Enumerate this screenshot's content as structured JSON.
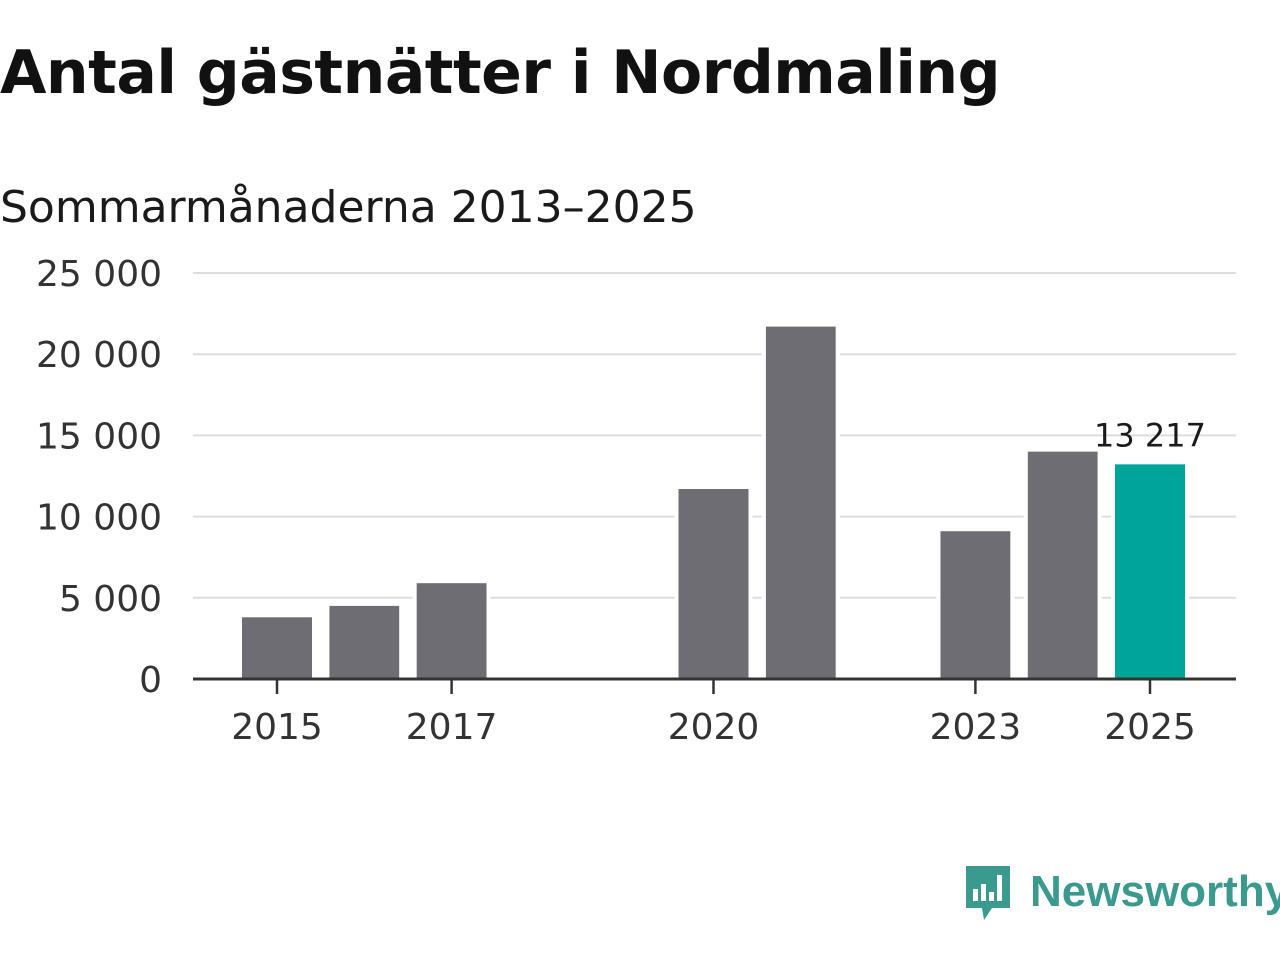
{
  "title": "Antal gästnätter i Nordmaling",
  "subtitle": "Sommarmånaderna 2013–2025",
  "brand": {
    "name": "Newsworthy",
    "icon": "bar-chart-speech-bubble-icon",
    "color": "#3a9a8e"
  },
  "colors": {
    "bar": "#6e6d73",
    "highlight": "#00a499",
    "grid": "#dddddd",
    "axis": "#333333"
  },
  "chart_data": {
    "type": "bar",
    "categories": [
      "2013",
      "2014",
      "2015",
      "2016",
      "2017",
      "2018",
      "2019",
      "2020",
      "2021",
      "2022",
      "2023",
      "2024",
      "2025"
    ],
    "values": [
      null,
      null,
      3800,
      4500,
      5900,
      null,
      null,
      11700,
      21700,
      null,
      9100,
      14000,
      13217
    ],
    "highlight_index": 12,
    "data_labels": [
      {
        "index": 12,
        "text": "13 217"
      }
    ],
    "x_tick_labels": [
      "2015",
      "2017",
      "2020",
      "2023",
      "2025"
    ],
    "y_tick_labels": [
      "0",
      "5 000",
      "10 000",
      "15 000",
      "20 000",
      "25 000"
    ],
    "y_ticks": [
      0,
      5000,
      10000,
      15000,
      20000,
      25000
    ],
    "ylim": [
      0,
      25000
    ],
    "xlabel": "",
    "ylabel": "",
    "grid": true,
    "legend": "none"
  }
}
